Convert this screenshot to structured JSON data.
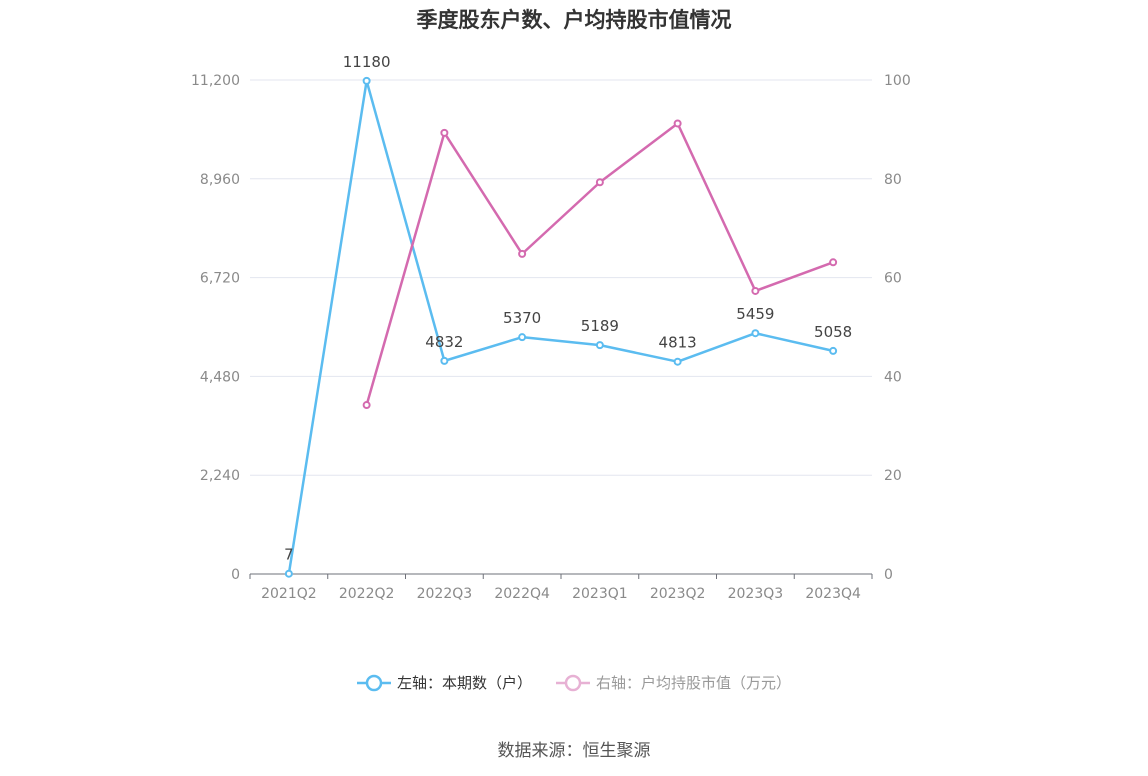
{
  "chart_data": {
    "type": "line",
    "title": "季度股东户数、户均持股市值情况",
    "categories": [
      "2021Q2",
      "2022Q2",
      "2022Q3",
      "2022Q4",
      "2023Q1",
      "2023Q2",
      "2023Q3",
      "2023Q4"
    ],
    "left_axis": {
      "ticks": [
        "0",
        "2,240",
        "4,480",
        "6,720",
        "8,960",
        "11,200"
      ],
      "range": [
        0,
        11200
      ]
    },
    "right_axis": {
      "ticks": [
        "0",
        "20",
        "40",
        "60",
        "80",
        "100"
      ],
      "range": [
        0,
        100
      ]
    },
    "series": [
      {
        "name": "左轴：本期数（户）",
        "axis": "left",
        "color": "#5bbcf0",
        "values": [
          7,
          11180,
          4832,
          5370,
          5189,
          4813,
          5459,
          5058
        ],
        "labels": [
          "7",
          "11180",
          "4832",
          "5370",
          "5189",
          "4813",
          "5459",
          "5058"
        ]
      },
      {
        "name": "右轴：户均持股市值（万元）",
        "axis": "right",
        "color": "#d46aaf",
        "values": [
          null,
          34.2,
          89.3,
          64.8,
          79.3,
          91.2,
          57.3,
          63.1
        ]
      }
    ],
    "grid": true,
    "legend_position": "bottom"
  },
  "source": "数据来源：恒生聚源"
}
